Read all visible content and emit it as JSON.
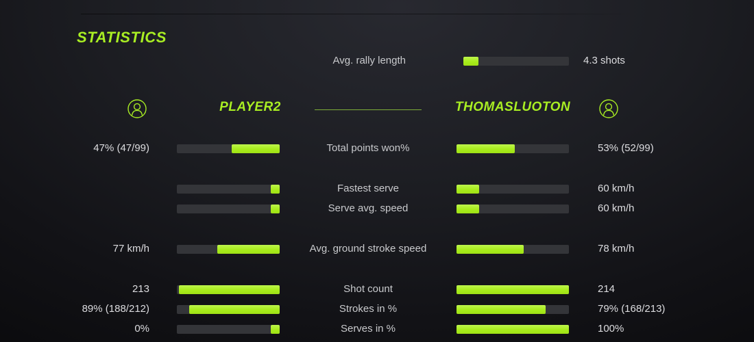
{
  "title": "STATISTICS",
  "colors": {
    "accent": "#a9ee23",
    "bar_track": "#343539",
    "name_divider": "#7fae39"
  },
  "rally": {
    "label": "Avg. rally length",
    "value": "4.3 shots",
    "fill_pct": 14
  },
  "players": {
    "left": {
      "name": "PLAYER2",
      "avatar_icon": "person-icon"
    },
    "right": {
      "name": "THOMASLUOTON",
      "avatar_icon": "person-icon"
    }
  },
  "chart_data": {
    "type": "bar",
    "note": "head-to-head stat comparison, bars per player per stat",
    "stats": [
      {
        "label": "Total points won%",
        "left": {
          "value": "47% (47/99)",
          "fill_pct": 47
        },
        "right": {
          "value": "53% (52/99)",
          "fill_pct": 52
        }
      },
      {
        "label": "Fastest serve",
        "left": {
          "value": "",
          "fill_pct": 9
        },
        "right": {
          "value": "60 km/h",
          "fill_pct": 20
        }
      },
      {
        "label": "Serve avg. speed",
        "left": {
          "value": "",
          "fill_pct": 9
        },
        "right": {
          "value": "60 km/h",
          "fill_pct": 20
        }
      },
      {
        "label": "Avg. ground stroke speed",
        "left": {
          "value": "77 km/h",
          "fill_pct": 61
        },
        "right": {
          "value": "78 km/h",
          "fill_pct": 60
        }
      },
      {
        "label": "Shot count",
        "left": {
          "value": "213",
          "fill_pct": 98
        },
        "right": {
          "value": "214",
          "fill_pct": 100
        }
      },
      {
        "label": "Strokes in %",
        "left": {
          "value": "89% (188/212)",
          "fill_pct": 88
        },
        "right": {
          "value": "79% (168/213)",
          "fill_pct": 79
        }
      },
      {
        "label": "Serves in %",
        "left": {
          "value": "0%",
          "fill_pct": 9
        },
        "right": {
          "value": "100%",
          "fill_pct": 100
        }
      }
    ]
  }
}
